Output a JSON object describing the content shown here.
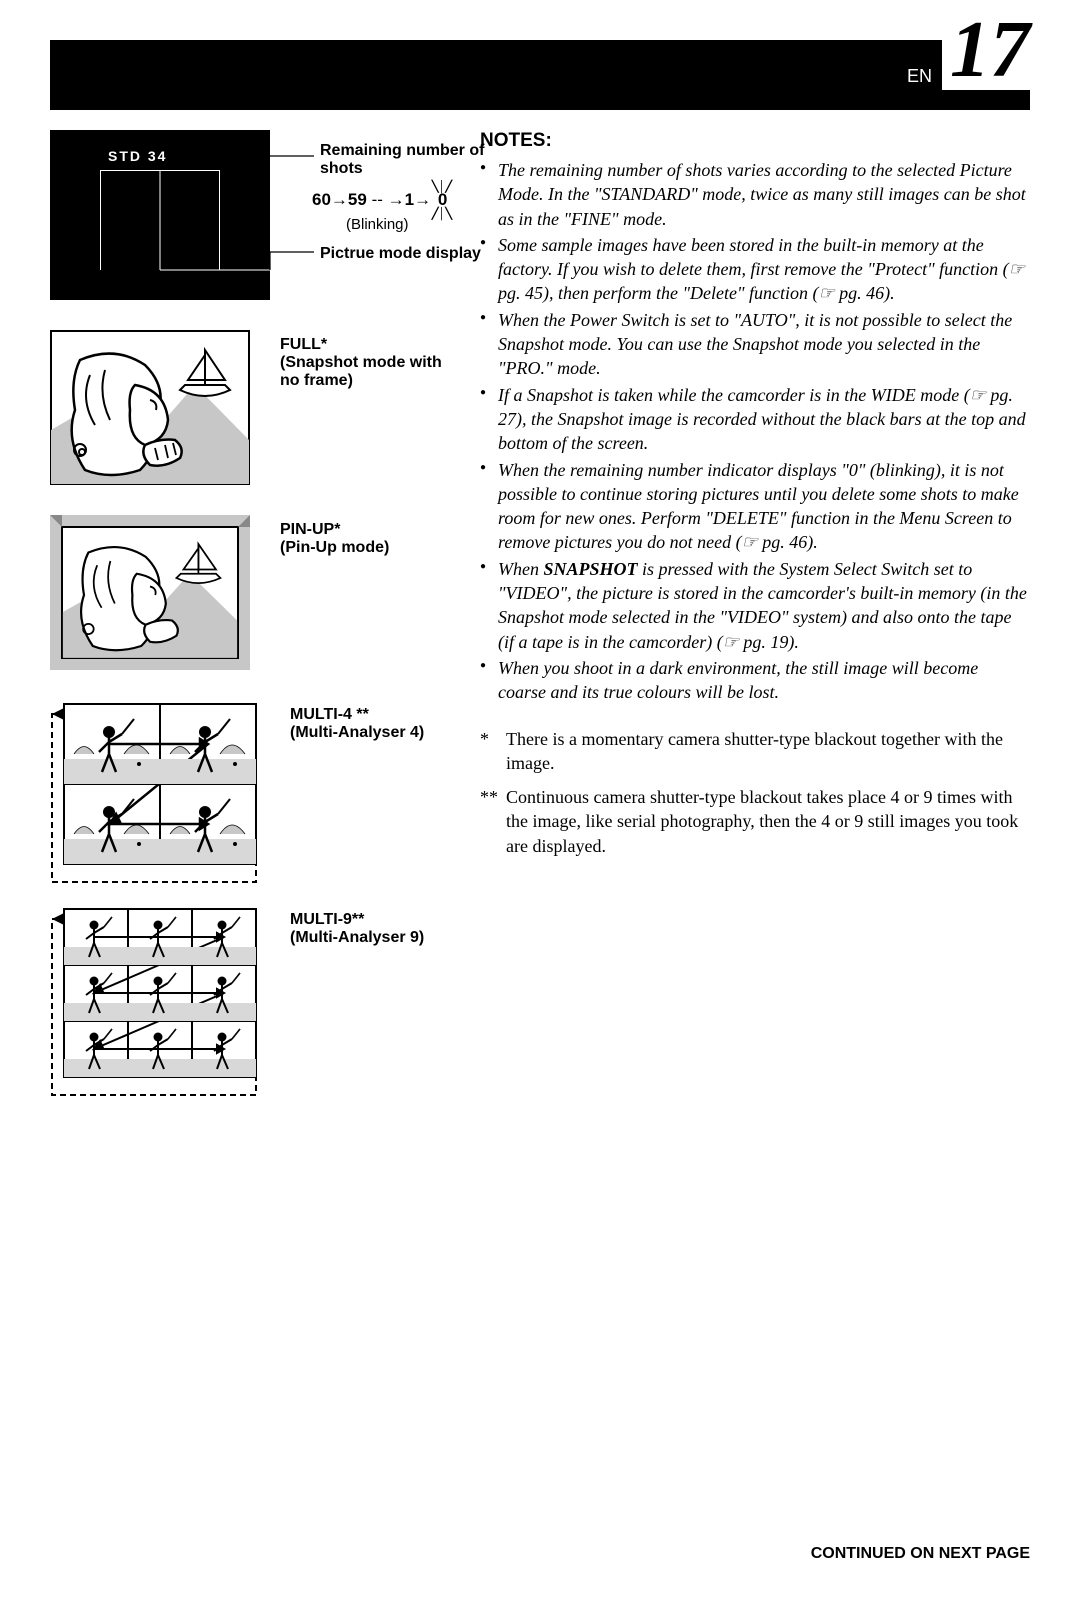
{
  "header": {
    "en_label": "EN",
    "page_number": "17"
  },
  "std_display": {
    "inner_text": "STD  34",
    "remaining_label": "Remaining number of shots",
    "countdown": "60 → 59 -- → 1 → 0",
    "blinking": "(Blinking)",
    "picmode_label": "Pictrue mode display",
    "bg_color": "#000000",
    "text_color": "#ffffff"
  },
  "illustrations": [
    {
      "title": "FULL*",
      "subtitle": "(Snapshot mode with no frame)",
      "type": "portrait_noframe"
    },
    {
      "title": "PIN-UP*",
      "subtitle": "(Pin-Up mode)",
      "type": "portrait_pinup"
    },
    {
      "title": "MULTI-4 **",
      "subtitle": "(Multi-Analyser 4)",
      "type": "multi4"
    },
    {
      "title": "MULTI-9**",
      "subtitle": "(Multi-Analyser 9)",
      "type": "multi9"
    }
  ],
  "notes": {
    "heading": "NOTES:",
    "items": [
      "The remaining number of shots varies according to the selected Picture Mode. In the \"STANDARD\" mode, twice as many still images can be shot as in the \"FINE\" mode.",
      "Some sample images have been stored in the built-in memory at the factory. If you wish to delete them, first remove the \"Protect\" function (☞ pg. 45), then perform the \"Delete\" function (☞ pg. 46).",
      "When the Power Switch is set to \"AUTO\", it is not possible to select the Snapshot mode. You can use the Snapshot mode you selected in the \"PRO.\" mode.",
      "If a Snapshot is taken while the camcorder is in the WIDE mode (☞ pg. 27), the Snapshot image is recorded without the black bars at the top and bottom of the screen.",
      "When the remaining number indicator displays \"0\" (blinking), it is not possible to continue storing pictures until you delete some shots to make room for new ones. Perform \"DELETE\" function in the Menu Screen to remove pictures you do not need (☞ pg. 46).",
      "When <b>SNAPSHOT</b> is pressed with the System Select Switch set to \"VIDEO\", the picture is stored in the camcorder's built-in memory (in the Snapshot mode selected in the \"VIDEO\" system) and also onto the tape (if a tape is in the camcorder) (☞ pg. 19).",
      "When you shoot in a dark environment, the still image will become coarse and its true colours will be lost."
    ]
  },
  "footnotes": [
    {
      "marker": "*",
      "text": "There is a momentary camera shutter-type blackout together with the image."
    },
    {
      "marker": "**",
      "text": "Continuous camera shutter-type blackout takes place 4 or 9 times with the image, like serial photography, then the 4 or 9 still images you took are displayed."
    }
  ],
  "continued": "CONTINUED ON NEXT PAGE",
  "colors": {
    "page_bg": "#ffffff",
    "text": "#000000",
    "illus_grey": "#c7c7c7",
    "illus_border": "#000000"
  },
  "svg_defs": {
    "portrait_width": 200,
    "portrait_height": 155,
    "multi4_width": 210,
    "multi4_height": 175,
    "multi9_width": 210,
    "multi9_height": 180
  }
}
